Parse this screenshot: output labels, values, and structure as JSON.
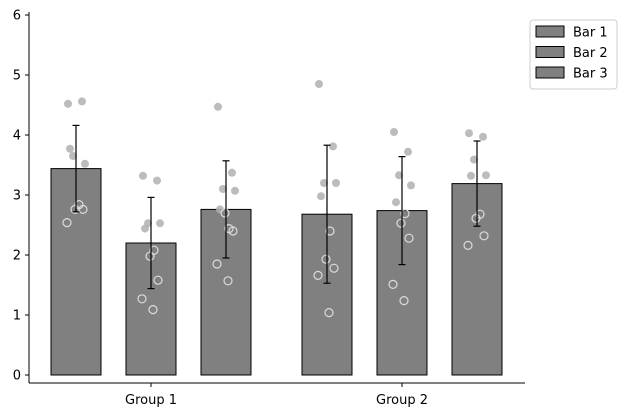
{
  "chart_data": {
    "type": "bar",
    "title": "",
    "xlabel": "",
    "ylabel": "",
    "categories": [
      "Group 1",
      "Group 2"
    ],
    "ylim": [
      0,
      6
    ],
    "yticks": [
      "0",
      "1",
      "2",
      "3",
      "4",
      "5",
      "6"
    ],
    "bar_color": "#808080",
    "edge_color": "#000000",
    "legend_position": "top-right (outside plot)",
    "grid": false,
    "series": [
      {
        "name": "Bar 1",
        "values": [
          3.44,
          2.68
        ],
        "errors": [
          0.72,
          1.15
        ]
      },
      {
        "name": "Bar 2",
        "values": [
          2.2,
          2.74
        ],
        "errors": [
          0.76,
          0.9
        ]
      },
      {
        "name": "Bar 3",
        "values": [
          2.76,
          3.19
        ],
        "errors": [
          0.81,
          0.71
        ]
      }
    ],
    "scatter_points": [
      {
        "group": 0,
        "bar": 0,
        "filled": [
          4.52,
          4.56,
          3.65,
          3.52,
          3.77
        ],
        "hollow": [
          2.84,
          2.76,
          2.76,
          2.54
        ]
      },
      {
        "group": 0,
        "bar": 1,
        "filled": [
          3.32,
          3.24,
          2.53,
          2.53,
          2.44
        ],
        "hollow": [
          2.08,
          1.98,
          1.58,
          1.27,
          1.09
        ]
      },
      {
        "group": 0,
        "bar": 2,
        "filled": [
          4.47,
          3.37,
          3.1,
          3.07,
          2.76
        ],
        "hollow": [
          2.44,
          2.7,
          2.4,
          1.85,
          1.57
        ]
      },
      {
        "group": 1,
        "bar": 0,
        "filled": [
          4.85,
          3.81,
          3.2,
          3.2,
          2.98
        ],
        "hollow": [
          2.4,
          1.93,
          1.78,
          1.66,
          1.04
        ]
      },
      {
        "group": 1,
        "bar": 1,
        "filled": [
          4.05,
          3.72,
          3.33,
          3.16,
          2.88
        ],
        "hollow": [
          2.69,
          2.53,
          2.28,
          1.51,
          1.24
        ]
      },
      {
        "group": 1,
        "bar": 2,
        "filled": [
          4.03,
          3.97,
          3.59,
          3.33,
          3.32
        ],
        "hollow": [
          2.68,
          2.61,
          2.32,
          2.16
        ]
      }
    ]
  }
}
